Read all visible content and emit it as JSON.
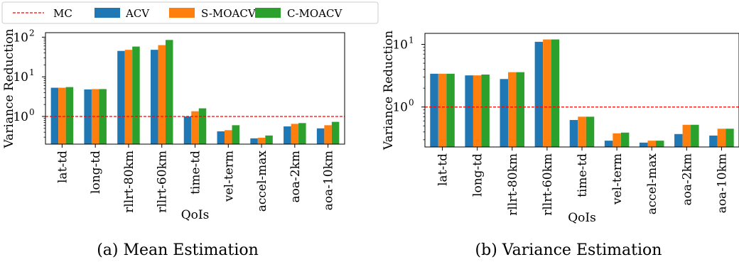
{
  "legend": {
    "entries": [
      {
        "label": "MC",
        "style": "dashed-line",
        "color": "#ff0000"
      },
      {
        "label": "ACV",
        "style": "patch",
        "color": "#1f77b4"
      },
      {
        "label": "S-MOACV",
        "style": "patch",
        "color": "#ff7f0e"
      },
      {
        "label": "C-MOACV",
        "style": "patch",
        "color": "#2ca02c"
      }
    ]
  },
  "chart_data": [
    {
      "type": "bar",
      "caption": "(a) Mean Estimation",
      "xlabel": "QoIs",
      "ylabel": "Variance Reduction",
      "yscale": "log",
      "ylim": [
        0.2,
        130
      ],
      "yticks": [
        {
          "value": 1,
          "label": "10^0"
        },
        {
          "value": 10,
          "label": "10^1"
        },
        {
          "value": 100,
          "label": "10^2"
        }
      ],
      "reference_line": {
        "name": "MC",
        "value": 1,
        "color": "#ff0000",
        "style": "dashed"
      },
      "categories": [
        "lat-td",
        "long-td",
        "rllrt-80km",
        "rllrt-60km",
        "time-td",
        "vel-term",
        "accel-max",
        "aoa-2km",
        "aoa-10km"
      ],
      "series": [
        {
          "name": "ACV",
          "color": "#1f77b4",
          "values": [
            5.3,
            4.8,
            45,
            48,
            1.0,
            0.42,
            0.28,
            0.56,
            0.5
          ]
        },
        {
          "name": "S-MOACV",
          "color": "#ff7f0e",
          "values": [
            5.3,
            4.9,
            48,
            63,
            1.35,
            0.45,
            0.29,
            0.65,
            0.6
          ]
        },
        {
          "name": "C-MOACV",
          "color": "#2ca02c",
          "values": [
            5.5,
            4.9,
            58,
            85,
            1.6,
            0.6,
            0.33,
            0.68,
            0.73
          ]
        }
      ],
      "grid": false
    },
    {
      "type": "bar",
      "caption": "(b) Variance Estimation",
      "xlabel": "QoIs",
      "ylabel": "Variance Reduction",
      "yscale": "log",
      "ylim": [
        0.23,
        15
      ],
      "yticks": [
        {
          "value": 1,
          "label": "10^0"
        },
        {
          "value": 10,
          "label": "10^1"
        }
      ],
      "reference_line": {
        "name": "MC",
        "value": 1,
        "color": "#ff0000",
        "style": "dashed"
      },
      "categories": [
        "lat-td",
        "long-td",
        "rllrt-80km",
        "rllrt-60km",
        "time-td",
        "vel-term",
        "accel-max",
        "aoa-2km",
        "aoa-10km"
      ],
      "series": [
        {
          "name": "ACV",
          "color": "#1f77b4",
          "values": [
            3.4,
            3.2,
            2.8,
            11,
            0.62,
            0.29,
            0.27,
            0.37,
            0.35
          ]
        },
        {
          "name": "S-MOACV",
          "color": "#ff7f0e",
          "values": [
            3.4,
            3.2,
            3.6,
            12,
            0.7,
            0.38,
            0.29,
            0.52,
            0.45
          ]
        },
        {
          "name": "C-MOACV",
          "color": "#2ca02c",
          "values": [
            3.4,
            3.3,
            3.6,
            12,
            0.7,
            0.39,
            0.29,
            0.52,
            0.45
          ]
        }
      ],
      "grid": false
    }
  ]
}
